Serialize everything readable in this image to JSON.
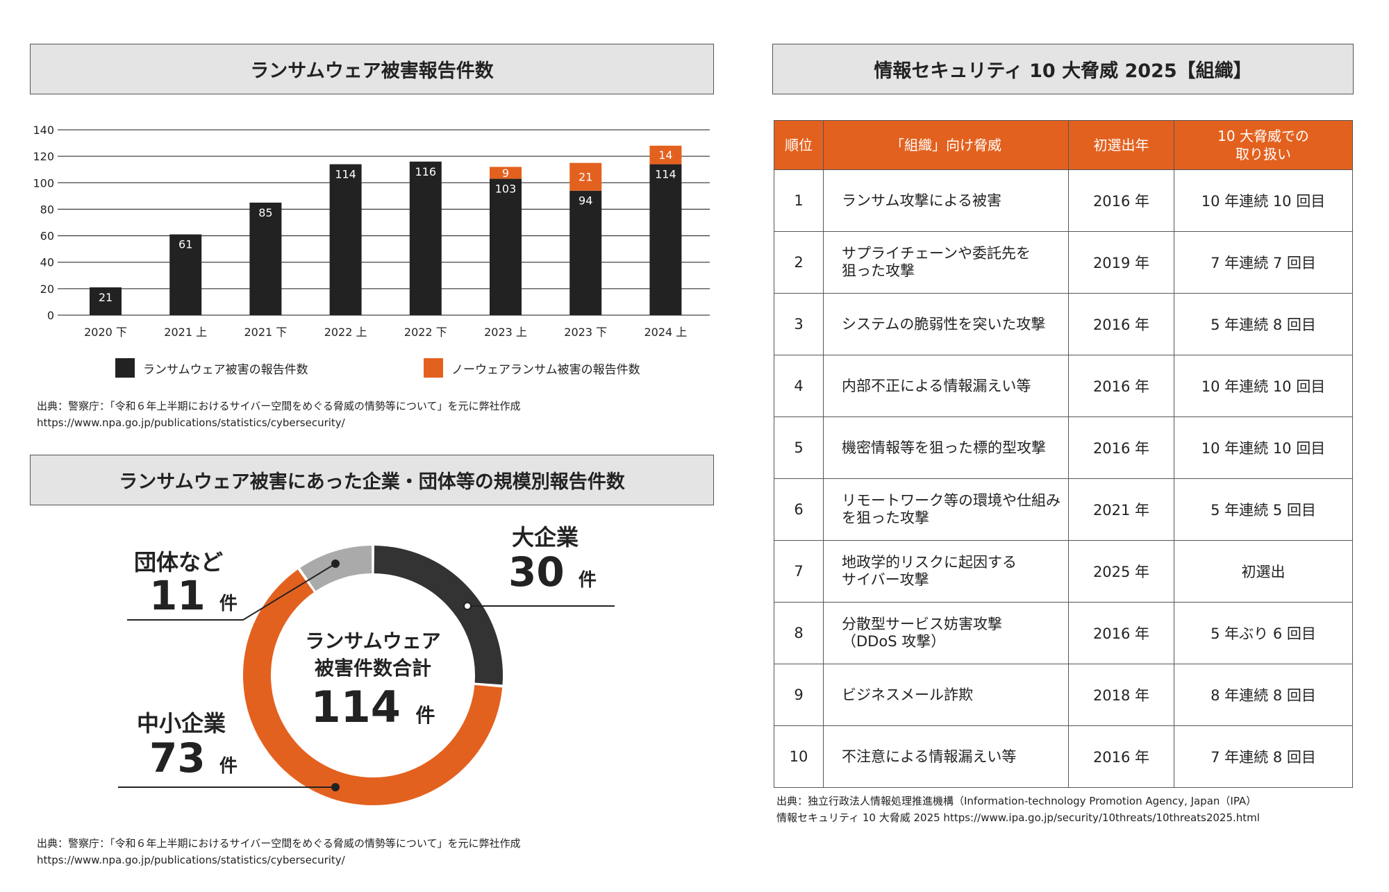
{
  "chart1": {
    "title": "ランサムウェア被害報告件数",
    "legend": [
      {
        "label": "ランサムウェア被害の報告件数",
        "color": "#222222"
      },
      {
        "label": "ノーウェアランサム被害の報告件数",
        "color": "#e3611f"
      }
    ],
    "source_line1": "出典：警察庁：「令和６年上半期におけるサイバー空間をめぐる脅威の情勢等について」を元に弊社作成",
    "source_line2": "https://www.npa.go.jp/publications/statistics/cybersecurity/"
  },
  "chart2": {
    "title": "ランサムウェア被害にあった企業・団体等の規模別報告件数",
    "center_line1": "ランサムウェア",
    "center_line2": "被害件数合計",
    "center_total": "114",
    "unit": "件",
    "segments": [
      {
        "label": "大企業",
        "value": "30",
        "color": "#333333"
      },
      {
        "label": "中小企業",
        "value": "73",
        "color": "#e3611f"
      },
      {
        "label": "団体など",
        "value": "11",
        "color": "#a9aaa9"
      }
    ],
    "source_line1": "出典：警察庁：「令和６年上半期におけるサイバー空間をめぐる脅威の情勢等について」を元に弊社作成",
    "source_line2": "https://www.npa.go.jp/publications/statistics/cybersecurity/"
  },
  "table": {
    "title": "情報セキュリティ 10 大脅威 2025【組織】",
    "headers": {
      "rank": "順位",
      "threat": "「組織」向け脅威",
      "first": "初選出年",
      "times_line1": "10 大脅威での",
      "times_line2": "取り扱い"
    },
    "rows": [
      {
        "rank": "1",
        "threat": "ランサム攻撃による被害",
        "first": "2016 年",
        "times": "10 年連続 10 回目"
      },
      {
        "rank": "2",
        "threat": "サプライチェーンや委託先を\n狙った攻撃",
        "first": "2019 年",
        "times": "7 年連続 7 回目"
      },
      {
        "rank": "3",
        "threat": "システムの脆弱性を突いた攻撃",
        "first": "2016 年",
        "times": "5 年連続 8 回目"
      },
      {
        "rank": "4",
        "threat": "内部不正による情報漏えい等",
        "first": "2016 年",
        "times": "10 年連続 10 回目"
      },
      {
        "rank": "5",
        "threat": "機密情報等を狙った標的型攻撃",
        "first": "2016 年",
        "times": "10 年連続 10 回目"
      },
      {
        "rank": "6",
        "threat": "リモートワーク等の環境や仕組み\nを狙った攻撃",
        "first": "2021 年",
        "times": "5 年連続 5 回目"
      },
      {
        "rank": "7",
        "threat": "地政学的リスクに起因する\nサイバー攻撃",
        "first": "2025 年",
        "times": "初選出"
      },
      {
        "rank": "8",
        "threat": "分散型サービス妨害攻撃\n（DDoS 攻撃）",
        "first": "2016 年",
        "times": "5 年ぶり 6 回目"
      },
      {
        "rank": "9",
        "threat": "ビジネスメール詐欺",
        "first": "2018 年",
        "times": "8 年連続 8 回目"
      },
      {
        "rank": "10",
        "threat": "不注意による情報漏えい等",
        "first": "2016 年",
        "times": "7 年連続 8 回目"
      }
    ],
    "source_line1": "出典：独立行政法人情報処理推進機構（Information-technology Promotion Agency, Japan（IPA）",
    "source_line2": "情報セキュリティ 10 大脅威 2025  https://www.ipa.go.jp/security/10threats/10threats2025.html"
  },
  "chart_data": [
    {
      "type": "bar",
      "stacked": true,
      "title": "ランサムウェア被害報告件数",
      "categories": [
        "2020 下",
        "2021 上",
        "2021 下",
        "2022 上",
        "2022 下",
        "2023 上",
        "2023 下",
        "2024 上"
      ],
      "series": [
        {
          "name": "ランサムウェア被害の報告件数",
          "values": [
            21,
            61,
            85,
            114,
            116,
            103,
            94,
            114
          ],
          "color": "#222222"
        },
        {
          "name": "ノーウェアランサム被害の報告件数",
          "values": [
            0,
            0,
            0,
            0,
            0,
            9,
            21,
            14
          ],
          "color": "#e3611f"
        }
      ],
      "ylim": [
        0,
        140
      ],
      "yticks": [
        0,
        20,
        40,
        60,
        80,
        100,
        120,
        140
      ],
      "grid": true,
      "xlabel": "",
      "ylabel": "",
      "legend_position": "bottom"
    },
    {
      "type": "pie",
      "donut": true,
      "title": "ランサムウェア被害にあった企業・団体等の規模別報告件数",
      "categories": [
        "大企業",
        "中小企業",
        "団体など"
      ],
      "values": [
        30,
        73,
        11
      ],
      "total": 114
    }
  ]
}
